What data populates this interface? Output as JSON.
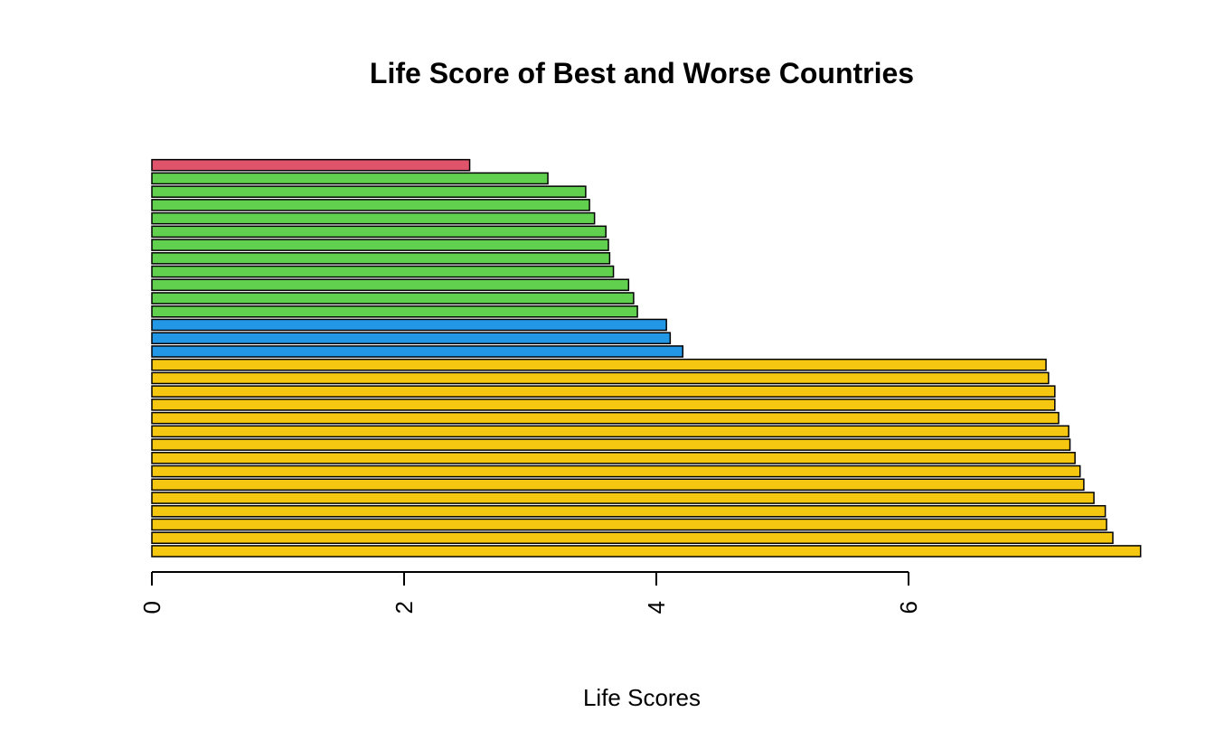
{
  "chart_data": {
    "type": "bar",
    "orientation": "horizontal",
    "title": "Life Score of Best and Worse Countries",
    "xlabel": "Life Scores",
    "ylabel": "",
    "xlim": [
      0,
      7.85
    ],
    "xticks": [
      0,
      2,
      4,
      6
    ],
    "xtick_labels": [
      "0",
      "2",
      "4",
      "6"
    ],
    "tick_label_rotation": "vertical",
    "grid": false,
    "legend": "none",
    "values_bottom_to_top": [
      7.84,
      7.62,
      7.57,
      7.56,
      7.47,
      7.39,
      7.36,
      7.32,
      7.28,
      7.27,
      7.19,
      7.16,
      7.16,
      7.11,
      7.09,
      4.21,
      4.11,
      4.08,
      3.85,
      3.82,
      3.78,
      3.66,
      3.63,
      3.62,
      3.6,
      3.51,
      3.47,
      3.44,
      3.14,
      2.52
    ],
    "colors_bottom_to_top": [
      "#F5C710",
      "#F5C710",
      "#F5C710",
      "#F5C710",
      "#F5C710",
      "#F5C710",
      "#F5C710",
      "#F5C710",
      "#F5C710",
      "#F5C710",
      "#F5C710",
      "#F5C710",
      "#F5C710",
      "#F5C710",
      "#F5C710",
      "#2297E6",
      "#2297E6",
      "#2297E6",
      "#61D04F",
      "#61D04F",
      "#61D04F",
      "#61D04F",
      "#61D04F",
      "#61D04F",
      "#61D04F",
      "#61D04F",
      "#61D04F",
      "#61D04F",
      "#61D04F",
      "#DF536B"
    ]
  }
}
